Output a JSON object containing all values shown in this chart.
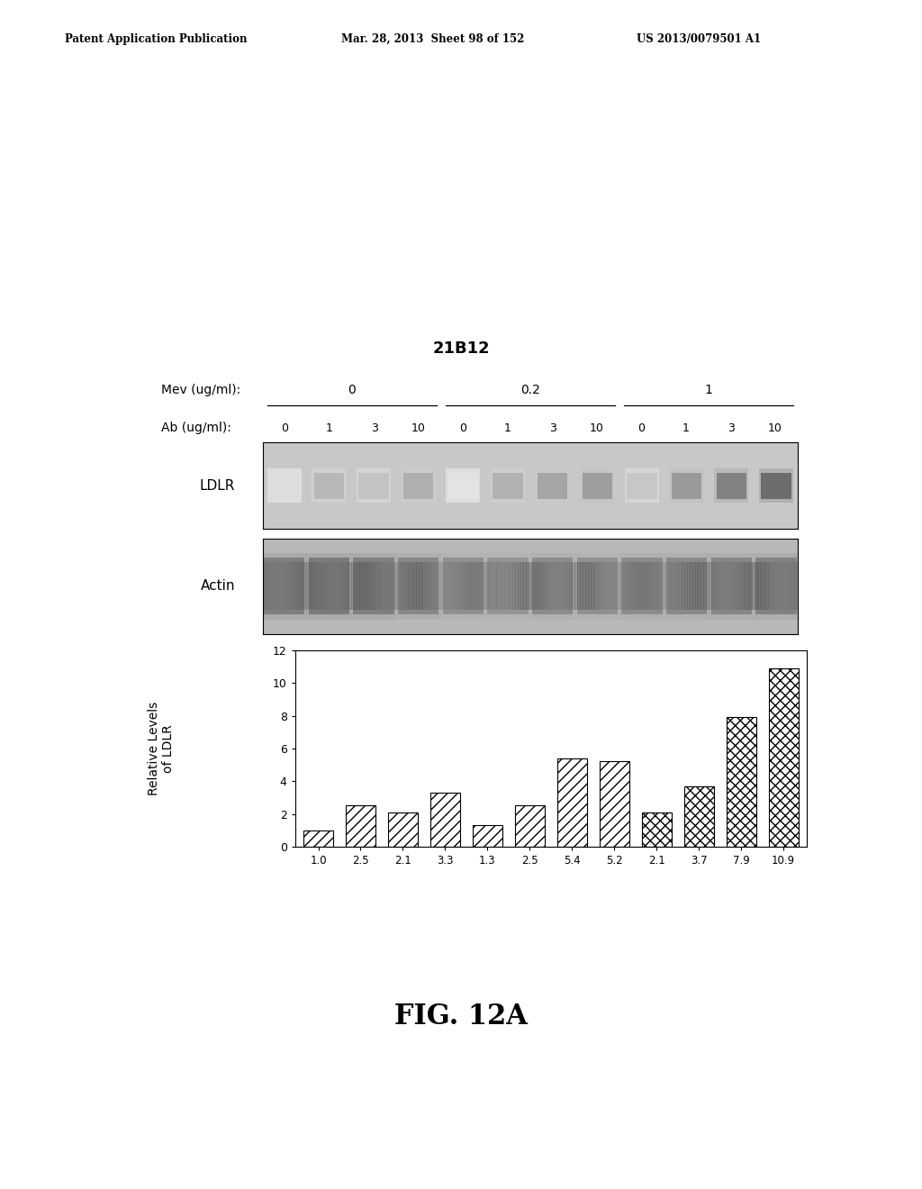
{
  "title": "21B12",
  "fig_label": "FIG. 12A",
  "mev_label": "Mev (ug/ml):",
  "mev_groups": [
    "0",
    "0.2",
    "1"
  ],
  "ab_label": "Ab (ug/ml):",
  "ab_values": [
    "0",
    "1",
    "3",
    "10",
    "0",
    "1",
    "3",
    "10",
    "0",
    "1",
    "3",
    "10"
  ],
  "ldlr_label": "LDLR",
  "actin_label": "Actin",
  "bar_values": [
    1.0,
    2.5,
    2.1,
    3.3,
    1.3,
    2.5,
    5.4,
    5.2,
    2.1,
    3.7,
    7.9,
    10.9
  ],
  "bar_labels": [
    "1.0",
    "2.5",
    "2.1",
    "3.3",
    "1.3",
    "2.5",
    "5.4",
    "5.2",
    "2.1",
    "3.7",
    "7.9",
    "10.9"
  ],
  "ylabel": "Relative Levels\nof LDLR",
  "ylim": [
    0,
    12
  ],
  "yticks": [
    0,
    2,
    4,
    6,
    8,
    10,
    12
  ],
  "background_color": "#ffffff",
  "bar_edge_color": "#000000",
  "hatch_patterns": [
    "///",
    "///",
    "///",
    "///",
    "///",
    "///",
    "///",
    "///",
    "xxx",
    "xxx",
    "xxx",
    "xxx"
  ],
  "bar_facecolor": "#ffffff",
  "ldlr_bg": "#c8c8c8",
  "actin_bg": "#b8b8b8",
  "ldlr_band_intensities": [
    0.25,
    0.45,
    0.4,
    0.5,
    0.2,
    0.48,
    0.55,
    0.58,
    0.38,
    0.6,
    0.72,
    0.82
  ],
  "actin_band_intensities": [
    0.8,
    0.82,
    0.8,
    0.75,
    0.7,
    0.68,
    0.72,
    0.7,
    0.72,
    0.74,
    0.76,
    0.78
  ],
  "patent_left": "Patent Application Publication",
  "patent_mid": "Mar. 28, 2013  Sheet 98 of 152",
  "patent_right": "US 2013/0079501 A1"
}
